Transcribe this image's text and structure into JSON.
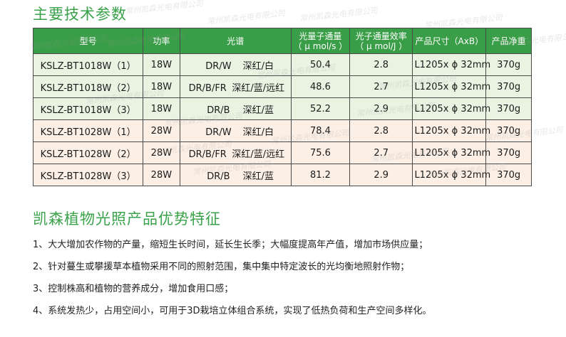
{
  "watermark": "常州凯森光电有限公司",
  "section1_title": "主要技术参数",
  "table": {
    "headers": {
      "model": "型号",
      "power": "功率",
      "spectrum": "光谱",
      "ppf_line1": "光量子通量",
      "ppf_line2": "（ μ mol/s ）",
      "efficacy_line1": "光子通量效率",
      "efficacy_line2": "（ μ mol/J ）",
      "size": "产品尺寸（AxB）",
      "weight": "产品净重"
    },
    "rows": [
      {
        "model": "KSLZ-BT1018W（1）",
        "power": "18W",
        "spectrum_code": "DR/W",
        "spectrum_color": "深红/白",
        "ppf": "50.4",
        "efficacy": "2.8",
        "size": "L1205x ϕ 32mm",
        "weight": "370g"
      },
      {
        "model": "KSLZ-BT1018W（2）",
        "power": "18W",
        "spectrum_code": "DR/B/FR",
        "spectrum_color": "深红/蓝/远红",
        "ppf": "48.6",
        "efficacy": "2.7",
        "size": "L1205x ϕ 32mm",
        "weight": "370g"
      },
      {
        "model": "KSLZ-BT1018W（3）",
        "power": "18W",
        "spectrum_code": "DR/B",
        "spectrum_color": "深红/蓝",
        "ppf": "52.2",
        "efficacy": "2.9",
        "size": "L1205x ϕ 32mm",
        "weight": "370g"
      },
      {
        "model": "KSLZ-BT1028W（1）",
        "power": "28W",
        "spectrum_code": "DR/W",
        "spectrum_color": "深红/白",
        "ppf": "78.4",
        "efficacy": "2.8",
        "size": "L1205x ϕ 32mm",
        "weight": "370g"
      },
      {
        "model": "KSLZ-BT1028W（2）",
        "power": "28W",
        "spectrum_code": "DR/B/FR",
        "spectrum_color": "深红/蓝/远红",
        "ppf": "75.6",
        "efficacy": "2.7",
        "size": "L1205x ϕ 32mm",
        "weight": "370g"
      },
      {
        "model": "KSLZ-BT1028W（3）",
        "power": "28W",
        "spectrum_code": "DR/B",
        "spectrum_color": "深红/蓝",
        "ppf": "81.2",
        "efficacy": "2.9",
        "size": "L1205x ϕ 32mm",
        "weight": "370g"
      }
    ]
  },
  "section2_title": "凯森植物光照产品优势特征",
  "features": [
    "1、大大增加农作物的产量，缩短生长时间，延长生长季；大幅度提高年产值，增加市场供应量；",
    "2、针对蔓生或攀援草本植物采用不同的照射范围，集中集中特定波长的光均衡地照射作物；",
    "3、控制株高和植物的营养成分，增加食用口感；",
    "4、系统发热少，占用空间小，可用于3D栽培立体组合系统，实现了低热负荷和生产空间多样化。"
  ],
  "colors": {
    "accent_green": "#3aa24a",
    "header_green": "#3a9e48",
    "row_green": "#e9f3e2",
    "row_peach": "#fcf0e6"
  }
}
